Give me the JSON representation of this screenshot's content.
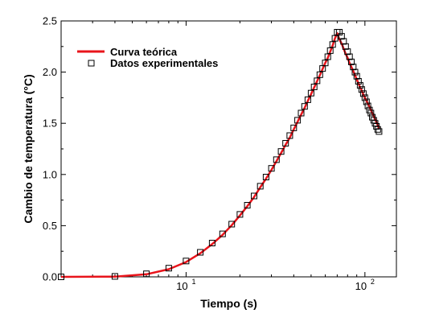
{
  "chart_data": {
    "type": "line",
    "title": "",
    "xlabel": "Tiempo (s)",
    "ylabel": "Cambio de temperatura (°C)",
    "x_scale": "log",
    "xlim": [
      2,
      150
    ],
    "ylim": [
      0,
      2.5
    ],
    "x_ticks": [
      {
        "value": 10,
        "base": "10",
        "exp": "1"
      },
      {
        "value": 100,
        "base": "10",
        "exp": "2"
      }
    ],
    "y_ticks": [
      {
        "value": 0,
        "label": "0.0"
      },
      {
        "value": 0.5,
        "label": "0.5"
      },
      {
        "value": 1.0,
        "label": "1.0"
      },
      {
        "value": 1.5,
        "label": "1.5"
      },
      {
        "value": 2.0,
        "label": "2.0"
      },
      {
        "value": 2.5,
        "label": "2.5"
      }
    ],
    "grid": false,
    "legend_position": "top-left",
    "series": [
      {
        "name": "Curva teórica",
        "style": "line",
        "color": "#e8141b",
        "x": [
          2,
          4,
          6,
          8,
          10,
          12,
          14,
          16,
          18,
          20,
          22,
          24,
          26,
          28,
          30,
          32,
          34,
          36,
          38,
          40,
          42,
          44,
          46,
          48,
          50,
          52,
          54,
          56,
          58,
          60,
          62,
          64,
          66,
          68,
          70,
          72,
          74,
          76,
          78,
          80,
          82,
          84,
          86,
          88,
          90,
          92,
          94,
          96,
          98,
          100,
          102,
          104,
          106,
          108,
          110,
          112,
          114,
          116,
          118,
          120
        ],
        "y": [
          0,
          0.002,
          0.025,
          0.075,
          0.145,
          0.23,
          0.32,
          0.41,
          0.505,
          0.6,
          0.69,
          0.78,
          0.875,
          0.96,
          1.045,
          1.13,
          1.21,
          1.29,
          1.36,
          1.44,
          1.515,
          1.585,
          1.65,
          1.72,
          1.785,
          1.85,
          1.91,
          1.97,
          2.03,
          2.09,
          2.14,
          2.2,
          2.26,
          2.33,
          2.38,
          2.32,
          2.28,
          2.23,
          2.18,
          2.14,
          2.09,
          2.05,
          2.01,
          1.97,
          1.93,
          1.89,
          1.85,
          1.82,
          1.78,
          1.75,
          1.72,
          1.69,
          1.66,
          1.63,
          1.6,
          1.57,
          1.54,
          1.51,
          1.48,
          1.45
        ]
      },
      {
        "name": "Datos experimentales",
        "style": "square-markers",
        "color": "#000000",
        "x": [
          2,
          4,
          6,
          8,
          10,
          12,
          14,
          16,
          18,
          20,
          22,
          24,
          26,
          28,
          30,
          32,
          34,
          36,
          38,
          40,
          42,
          44,
          46,
          48,
          50,
          52,
          54,
          56,
          58,
          60,
          62,
          64,
          66,
          68,
          70,
          72,
          74,
          76,
          78,
          80,
          82,
          84,
          86,
          88,
          90,
          92,
          94,
          96,
          98,
          100,
          102,
          104,
          106,
          108,
          110,
          112,
          114,
          116,
          118,
          120
        ],
        "y": [
          0.0,
          0.005,
          0.03,
          0.085,
          0.155,
          0.24,
          0.33,
          0.42,
          0.515,
          0.61,
          0.7,
          0.79,
          0.885,
          0.975,
          1.06,
          1.145,
          1.225,
          1.305,
          1.38,
          1.455,
          1.53,
          1.6,
          1.665,
          1.73,
          1.795,
          1.855,
          1.915,
          1.975,
          2.035,
          2.09,
          2.15,
          2.21,
          2.27,
          2.33,
          2.39,
          2.39,
          2.35,
          2.3,
          2.25,
          2.2,
          2.15,
          2.1,
          2.05,
          2.0,
          1.96,
          1.91,
          1.87,
          1.83,
          1.79,
          1.75,
          1.71,
          1.67,
          1.63,
          1.6,
          1.56,
          1.53,
          1.5,
          1.47,
          1.44,
          1.42
        ]
      }
    ]
  }
}
